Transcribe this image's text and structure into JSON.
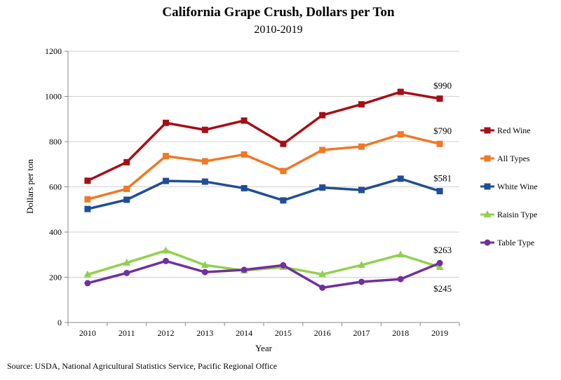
{
  "chart_data": {
    "type": "line",
    "title": "California Grape Crush, Dollars per Ton",
    "subtitle": "2010-2019",
    "xlabel": "Year",
    "ylabel": "Dollars per ton",
    "ylim": [
      0,
      1200
    ],
    "yticks": [
      0,
      200,
      400,
      600,
      800,
      1000,
      1200
    ],
    "grid": "horizontal",
    "legend_position": "right",
    "categories": [
      "2010",
      "2011",
      "2012",
      "2013",
      "2014",
      "2015",
      "2016",
      "2017",
      "2018",
      "2019"
    ],
    "series": [
      {
        "name": "Red Wine",
        "color": "#a50f15",
        "marker": "square",
        "values": [
          627,
          709,
          883,
          852,
          893,
          790,
          917,
          965,
          1020,
          990
        ]
      },
      {
        "name": "All Types",
        "color": "#f07826",
        "marker": "square",
        "values": [
          545,
          591,
          736,
          713,
          743,
          670,
          763,
          778,
          832,
          790
        ]
      },
      {
        "name": "White Wine",
        "color": "#1f4e96",
        "marker": "square",
        "values": [
          502,
          543,
          626,
          623,
          594,
          540,
          597,
          586,
          636,
          581
        ]
      },
      {
        "name": "Raisin Type",
        "color": "#92d050",
        "marker": "triangle",
        "values": [
          212,
          264,
          318,
          254,
          230,
          245,
          213,
          254,
          300,
          245
        ]
      },
      {
        "name": "Table Type",
        "color": "#7030a0",
        "marker": "circle",
        "values": [
          174,
          219,
          272,
          223,
          233,
          253,
          154,
          180,
          192,
          263
        ]
      }
    ],
    "annotations": [
      {
        "text": "$990",
        "series": "Red Wine",
        "category": "2019"
      },
      {
        "text": "$790",
        "series": "All Types",
        "category": "2019"
      },
      {
        "text": "$581",
        "series": "White Wine",
        "category": "2019"
      },
      {
        "text": "$263",
        "series": "Table Type",
        "category": "2019"
      },
      {
        "text": "$245",
        "series": "Raisin Type",
        "category": "2019"
      }
    ]
  },
  "source": "Source: USDA, National Agricultural Statistics Service, Pacific Regional Office"
}
